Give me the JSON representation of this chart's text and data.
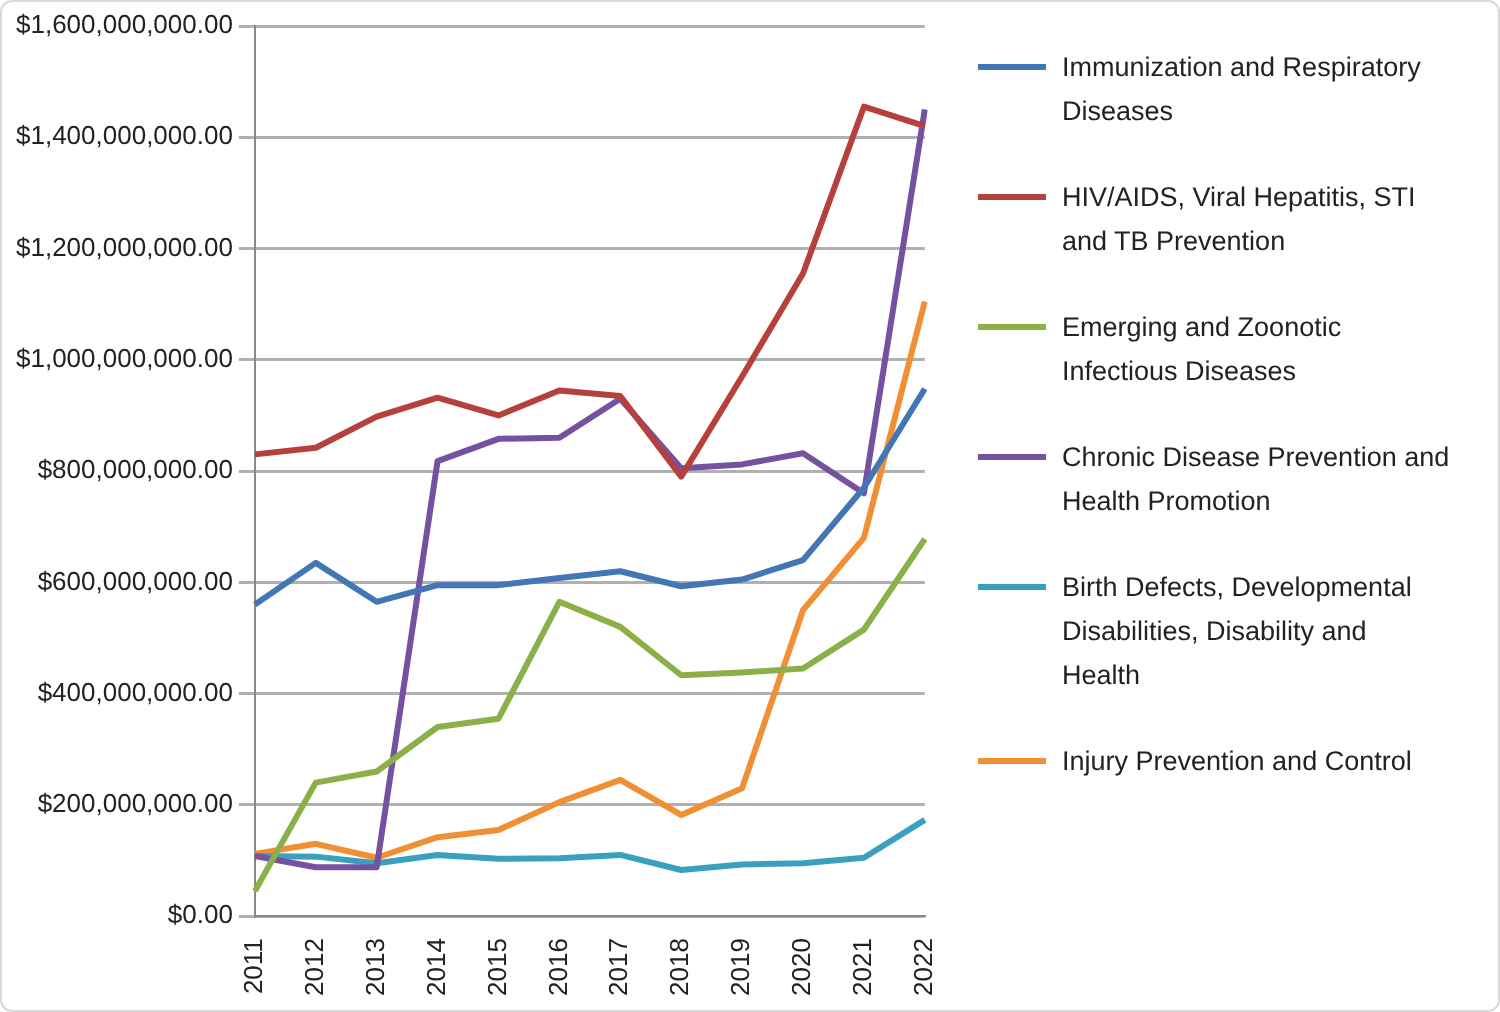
{
  "chart_data": {
    "type": "line",
    "categories": [
      "2011",
      "2012",
      "2013",
      "2014",
      "2015",
      "2016",
      "2017",
      "2018",
      "2019",
      "2020",
      "2021",
      "2022"
    ],
    "series": [
      {
        "name": "Immunization and Respiratory Diseases",
        "color": "#4276b5",
        "values": [
          560000000,
          635000000,
          565000000,
          595000000,
          595000000,
          608000000,
          620000000,
          593000000,
          605000000,
          640000000,
          770000000,
          948000000
        ]
      },
      {
        "name": "HIV/AIDS, Viral Hepatitis, STI and TB Prevention",
        "color": "#b5403c",
        "values": [
          830000000,
          842000000,
          898000000,
          932000000,
          900000000,
          945000000,
          935000000,
          790000000,
          970000000,
          1155000000,
          1455000000,
          1420000000
        ]
      },
      {
        "name": "Emerging and Zoonotic Infectious Diseases",
        "color": "#8cb048",
        "values": [
          45000000,
          240000000,
          260000000,
          340000000,
          355000000,
          565000000,
          520000000,
          433000000,
          438000000,
          445000000,
          515000000,
          678000000
        ]
      },
      {
        "name": "Chronic Disease Prevention and Health Promotion",
        "color": "#7552a0",
        "values": [
          108000000,
          88000000,
          88000000,
          818000000,
          858000000,
          860000000,
          930000000,
          805000000,
          812000000,
          832000000,
          760000000,
          1450000000
        ]
      },
      {
        "name": "Birth Defects, Developmental Disabilities, Disability and Health",
        "color": "#3ba0bd",
        "values": [
          108000000,
          107000000,
          95000000,
          110000000,
          103000000,
          104000000,
          110000000,
          83000000,
          93000000,
          95000000,
          105000000,
          173000000
        ]
      },
      {
        "name": "Injury Prevention and Control",
        "color": "#f18f35",
        "values": [
          112000000,
          130000000,
          105000000,
          142000000,
          155000000,
          205000000,
          245000000,
          182000000,
          230000000,
          550000000,
          680000000,
          1105000000
        ]
      }
    ],
    "ylim": [
      0,
      1600000000
    ],
    "yticks": [
      {
        "value": 0,
        "label": "$0.00"
      },
      {
        "value": 200000000,
        "label": "$200,000,000.00"
      },
      {
        "value": 400000000,
        "label": "$400,000,000.00"
      },
      {
        "value": 600000000,
        "label": "$600,000,000.00"
      },
      {
        "value": 800000000,
        "label": "$800,000,000.00"
      },
      {
        "value": 1000000000,
        "label": "$1,000,000,000.00"
      },
      {
        "value": 1200000000,
        "label": "$1,200,000,000.00"
      },
      {
        "value": 1400000000,
        "label": "$1,400,000,000.00"
      },
      {
        "value": 1600000000,
        "label": "$1,600,000,000.00"
      }
    ],
    "grid": "y",
    "legend": "right",
    "marker": "none",
    "line_style": "solid"
  }
}
